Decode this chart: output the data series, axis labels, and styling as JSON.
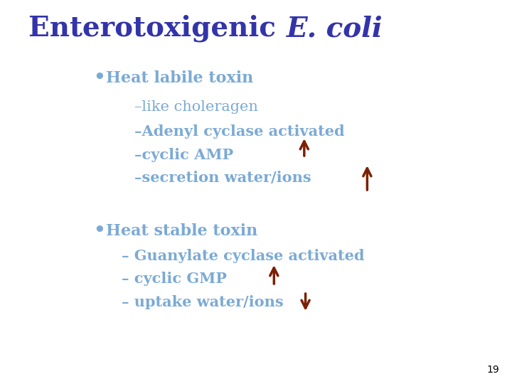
{
  "title_normal": "Enterotoxigenic ",
  "title_italic": "E. coli",
  "title_color": "#3333AA",
  "title_fontsize": 28,
  "body_color": "#7BAAD4",
  "body_fontsize": 16,
  "sub_fontsize": 15,
  "arrow_color": "#7B2000",
  "page_number": "19",
  "background_color": "#FFFFFF",
  "bullet1": "Heat labile toxin",
  "sub1a": "–like choleragen",
  "sub1b": "–Adenyl cyclase activated",
  "sub1c": "–cyclic AMP",
  "sub1d": "–secretion water/ions",
  "bullet2": "Heat stable toxin",
  "sub2a": "– Guanylate cyclase activated",
  "sub2b": "– cyclic GMP",
  "sub2c": "– uptake water/ions"
}
